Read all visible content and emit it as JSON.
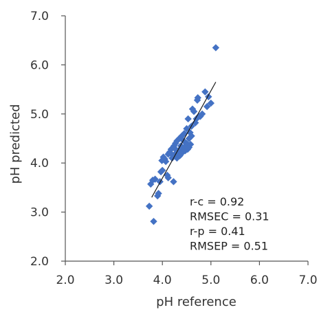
{
  "chart_data": {
    "type": "scatter",
    "xlabel": "pH reference",
    "ylabel": "pH predicted",
    "xlim": [
      2.0,
      7.0
    ],
    "ylim": [
      2.0,
      7.0
    ],
    "xticks": [
      "2.0",
      "3.0",
      "4.0",
      "5.0",
      "6.0",
      "7.0"
    ],
    "yticks": [
      "2.0",
      "3.0",
      "4.0",
      "5.0",
      "6.0",
      "7.0"
    ],
    "grid": false,
    "marker_color": "#4472C4",
    "marker": "diamond",
    "annotations": [
      "r-c = 0.92",
      "RMSEC = 0.31",
      "r-p = 0.41",
      "RMSEP = 0.51"
    ],
    "trendline": {
      "x": [
        3.78,
        5.1
      ],
      "y": [
        3.3,
        5.65
      ]
    },
    "points": [
      [
        3.73,
        3.12
      ],
      [
        3.82,
        2.81
      ],
      [
        3.76,
        3.57
      ],
      [
        3.8,
        3.65
      ],
      [
        3.85,
        3.67
      ],
      [
        3.9,
        3.33
      ],
      [
        3.92,
        3.38
      ],
      [
        3.95,
        3.62
      ],
      [
        3.97,
        3.82
      ],
      [
        4.0,
        3.85
      ],
      [
        3.99,
        4.05
      ],
      [
        4.02,
        4.12
      ],
      [
        4.05,
        4.08
      ],
      [
        4.07,
        4.03
      ],
      [
        4.1,
        3.75
      ],
      [
        4.12,
        3.7
      ],
      [
        4.12,
        4.18
      ],
      [
        4.15,
        4.22
      ],
      [
        4.18,
        4.28
      ],
      [
        4.2,
        4.1
      ],
      [
        4.22,
        4.15
      ],
      [
        4.23,
        3.62
      ],
      [
        4.24,
        4.35
      ],
      [
        4.25,
        4.3
      ],
      [
        4.27,
        4.4
      ],
      [
        4.28,
        4.2
      ],
      [
        4.3,
        4.45
      ],
      [
        4.3,
        4.1
      ],
      [
        4.33,
        4.25
      ],
      [
        4.35,
        4.5
      ],
      [
        4.36,
        4.15
      ],
      [
        4.38,
        4.35
      ],
      [
        4.4,
        4.2
      ],
      [
        4.4,
        4.55
      ],
      [
        4.42,
        4.3
      ],
      [
        4.44,
        4.45
      ],
      [
        4.45,
        4.6
      ],
      [
        4.47,
        4.25
      ],
      [
        4.48,
        4.35
      ],
      [
        4.5,
        4.7
      ],
      [
        4.5,
        4.4
      ],
      [
        4.52,
        4.28
      ],
      [
        4.53,
        4.9
      ],
      [
        4.55,
        4.5
      ],
      [
        4.55,
        4.32
      ],
      [
        4.57,
        4.62
      ],
      [
        4.58,
        4.38
      ],
      [
        4.6,
        4.75
      ],
      [
        4.6,
        4.55
      ],
      [
        4.62,
        5.1
      ],
      [
        4.65,
        5.05
      ],
      [
        4.68,
        4.82
      ],
      [
        4.7,
        4.9
      ],
      [
        4.72,
        5.28
      ],
      [
        4.73,
        5.33
      ],
      [
        4.75,
        4.95
      ],
      [
        4.78,
        4.95
      ],
      [
        4.82,
        5.0
      ],
      [
        4.88,
        5.45
      ],
      [
        4.92,
        5.15
      ],
      [
        4.95,
        5.35
      ],
      [
        5.0,
        5.22
      ],
      [
        5.1,
        6.35
      ]
    ]
  }
}
